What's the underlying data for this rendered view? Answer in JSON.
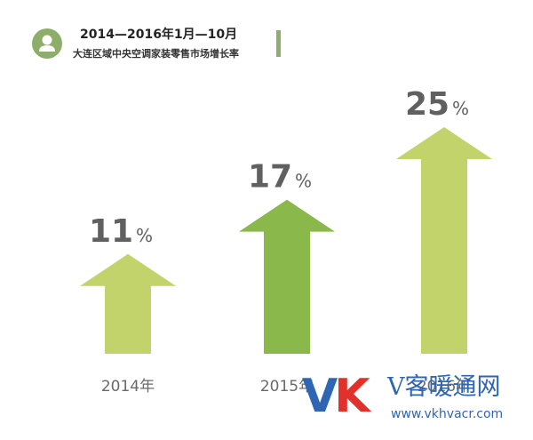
{
  "header": {
    "title_line1": "2014—2016年1月—10月",
    "title_line2": "大连区域中央空调家装零售市场增长率"
  },
  "chart_data": {
    "type": "bar",
    "categories": [
      "2014年",
      "2015年",
      "2016年"
    ],
    "values": [
      11,
      17,
      25
    ],
    "value_suffix": "%",
    "ylim": [
      0,
      30
    ],
    "grid": false,
    "colors": [
      "#c2d36b",
      "#8ab84a",
      "#c2d36b"
    ]
  },
  "watermark": {
    "v": "V",
    "k": "K",
    "name": "V客暖通网",
    "url": "www.vkhvacr.com"
  },
  "icons": {
    "header": "user-icon"
  }
}
